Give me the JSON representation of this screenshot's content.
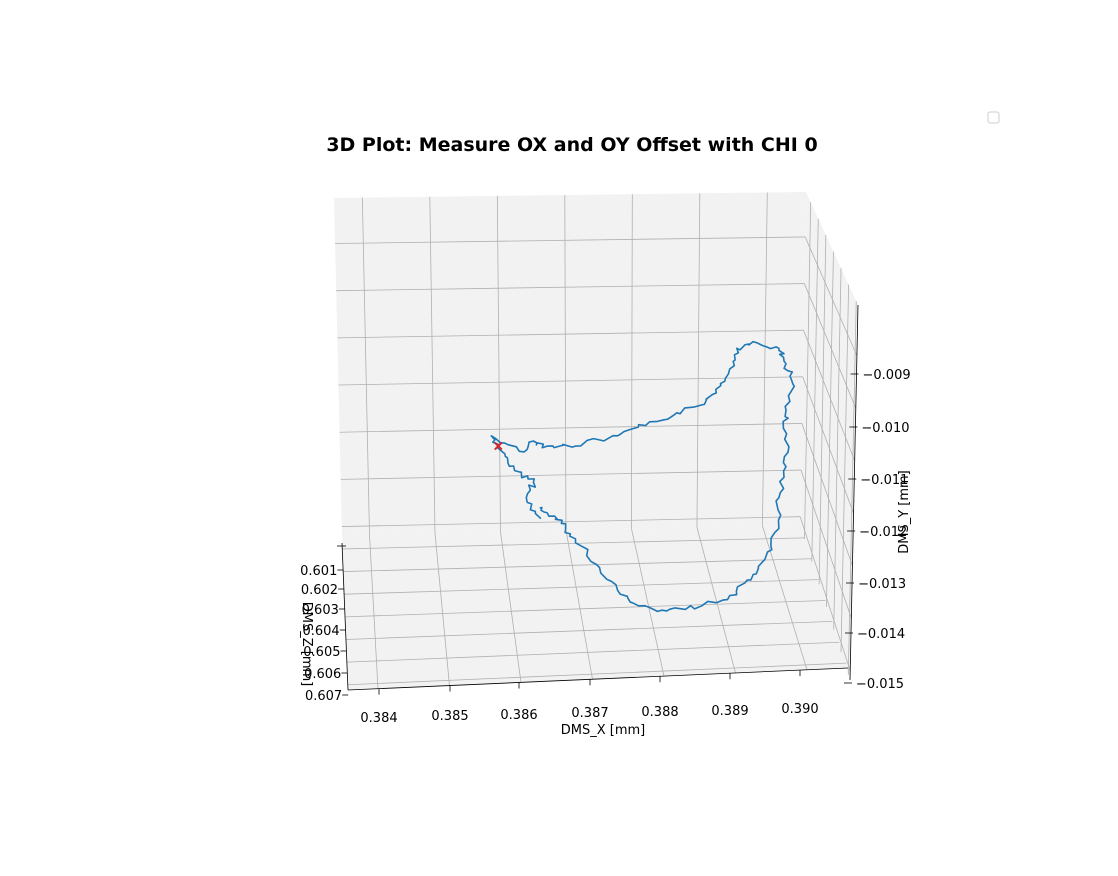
{
  "chart_data": {
    "type": "line",
    "projection": "3d",
    "title": "3D Plot: Measure OX and OY Offset with CHI 0",
    "xlabel": "DMS_X [mm]",
    "ylabel": "DMS_Y [mm]",
    "zlabel": "DMS_Z [mm]",
    "x_ticks": [
      "0.384",
      "0.385",
      "0.386",
      "0.387",
      "0.388",
      "0.389",
      "0.390"
    ],
    "y_ticks": [
      "0.009",
      "0.010",
      "0.011",
      "0.012",
      "0.013",
      "0.014",
      "0.015"
    ],
    "z_ticks": [
      "0.601",
      "0.602",
      "0.603",
      "0.604",
      "0.605",
      "0.606",
      "0.607"
    ],
    "y_tick_prefix": "−",
    "grid": true,
    "legend": {
      "position": "top-right",
      "entries": []
    },
    "series": [
      {
        "color": "#1f77b4",
        "points": [
          [
            0.3863,
            -0.0118
          ],
          [
            0.3861,
            -0.0114
          ],
          [
            0.3862,
            -0.0111
          ],
          [
            0.386,
            -0.0109
          ],
          [
            0.3858,
            -0.0106
          ],
          [
            0.3856,
            -0.0102
          ],
          [
            0.386,
            -0.0105
          ],
          [
            0.3862,
            -0.0103
          ],
          [
            0.3864,
            -0.0104
          ],
          [
            0.3868,
            -0.0104
          ],
          [
            0.3874,
            -0.0102
          ],
          [
            0.3878,
            -0.01
          ],
          [
            0.3882,
            -0.0098
          ],
          [
            0.3886,
            -0.0096
          ],
          [
            0.3888,
            -0.0093
          ],
          [
            0.389,
            -0.0089
          ],
          [
            0.3891,
            -0.0085
          ],
          [
            0.3894,
            -0.0084
          ],
          [
            0.3897,
            -0.0085
          ],
          [
            0.3898,
            -0.0088
          ],
          [
            0.3899,
            -0.0092
          ],
          [
            0.3898,
            -0.0097
          ],
          [
            0.3898,
            -0.0102
          ],
          [
            0.3898,
            -0.0108
          ],
          [
            0.3897,
            -0.0114
          ],
          [
            0.3897,
            -0.012
          ],
          [
            0.3895,
            -0.0126
          ],
          [
            0.3893,
            -0.013
          ],
          [
            0.389,
            -0.0133
          ],
          [
            0.3886,
            -0.0135
          ],
          [
            0.3881,
            -0.0136
          ],
          [
            0.3877,
            -0.0135
          ],
          [
            0.3874,
            -0.0132
          ],
          [
            0.3871,
            -0.0127
          ],
          [
            0.3868,
            -0.0122
          ],
          [
            0.3866,
            -0.0119
          ],
          [
            0.3864,
            -0.0117
          ],
          [
            0.3863,
            -0.0116
          ]
        ]
      },
      {
        "color": "#d62728",
        "marker": "x",
        "points": [
          [
            0.3857,
            -0.0104
          ]
        ]
      }
    ],
    "xlim": [
      0.3837,
      0.3907
    ],
    "ylim": [
      -0.015,
      -0.0082
    ],
    "zlim": [
      0.601,
      0.607
    ],
    "view": {
      "elevation": 15,
      "azimuth": -90
    }
  }
}
